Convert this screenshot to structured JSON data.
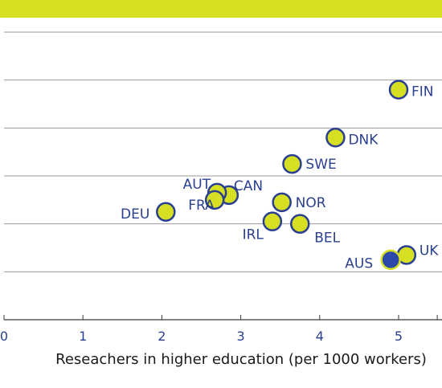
{
  "colors": {
    "band": "#d7df23",
    "point_fill": "#d7df23",
    "point_stroke": "#2a3f8f",
    "highlight_fill": "#2a49a8",
    "highlight_ring": "#d7df23",
    "label": "#2a3f8f",
    "grid": "#9a9a9a",
    "axis": "#3a3a3a",
    "tick_text": "#2a3f8f"
  },
  "chart_data": {
    "type": "scatter",
    "title": "",
    "xlabel": "Reseachers in higher education (per 1000 workers)",
    "ylabel": "",
    "xlim": [
      0,
      5.5
    ],
    "ylim": [
      0,
      6
    ],
    "x_ticks": [
      "0",
      "1",
      "2",
      "3",
      "4",
      "5"
    ],
    "grid": "horizontal",
    "points": [
      {
        "label": "FIN",
        "x": 5.0,
        "y": 4.8,
        "highlight": false
      },
      {
        "label": "DNK",
        "x": 4.2,
        "y": 3.8,
        "highlight": false
      },
      {
        "label": "SWE",
        "x": 3.65,
        "y": 3.25,
        "highlight": false
      },
      {
        "label": "CAN",
        "x": 2.85,
        "y": 2.6,
        "highlight": false
      },
      {
        "label": "AUT",
        "x": 2.7,
        "y": 2.65,
        "highlight": false
      },
      {
        "label": "FRA",
        "x": 2.67,
        "y": 2.5,
        "highlight": false
      },
      {
        "label": "DEU",
        "x": 2.05,
        "y": 2.25,
        "highlight": false
      },
      {
        "label": "NOR",
        "x": 3.52,
        "y": 2.45,
        "highlight": false
      },
      {
        "label": "IRL",
        "x": 3.4,
        "y": 2.05,
        "highlight": false
      },
      {
        "label": "BEL",
        "x": 3.75,
        "y": 2.0,
        "highlight": false
      },
      {
        "label": "UK",
        "x": 5.1,
        "y": 1.35,
        "highlight": false
      },
      {
        "label": "AUS",
        "x": 4.9,
        "y": 1.25,
        "highlight": true
      }
    ]
  }
}
